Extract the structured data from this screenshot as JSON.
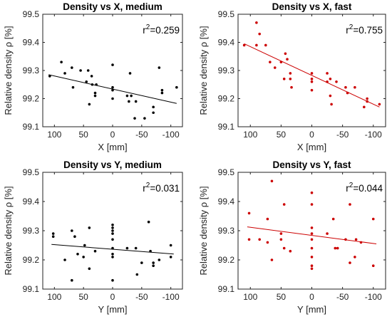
{
  "chart_data": [
    {
      "type": "scatter",
      "title": "Density vs X, medium",
      "xlabel": "X [mm]",
      "ylabel": "Relative density ρ [%]",
      "xlim": [
        120,
        -120
      ],
      "ylim": [
        99.1,
        99.5
      ],
      "xticks": [
        100,
        50,
        0,
        -50,
        -100
      ],
      "xtick_labels": [
        "100",
        "50",
        "0",
        "-50",
        "-100"
      ],
      "yticks": [
        99.1,
        99.2,
        99.3,
        99.4,
        99.5
      ],
      "ytick_labels": [
        "99.1",
        "99.2",
        "99.3",
        "99.4",
        "99.5"
      ],
      "r2_prefix": "r",
      "r2_sup": "2",
      "r2_value": "=0.259",
      "color": "#000000",
      "points": [
        {
          "x": 108,
          "y": 99.28
        },
        {
          "x": 88,
          "y": 99.33
        },
        {
          "x": 82,
          "y": 99.29
        },
        {
          "x": 70,
          "y": 99.31
        },
        {
          "x": 68,
          "y": 99.24
        },
        {
          "x": 55,
          "y": 99.3
        },
        {
          "x": 45,
          "y": 99.26
        },
        {
          "x": 40,
          "y": 99.18
        },
        {
          "x": 42,
          "y": 99.3
        },
        {
          "x": 36,
          "y": 99.28
        },
        {
          "x": 35,
          "y": 99.25
        },
        {
          "x": 30,
          "y": 99.22
        },
        {
          "x": 30,
          "y": 99.21
        },
        {
          "x": 28,
          "y": 99.25
        },
        {
          "x": 0,
          "y": 99.32
        },
        {
          "x": 0,
          "y": 99.24
        },
        {
          "x": 0,
          "y": 99.23
        },
        {
          "x": 0,
          "y": 99.2
        },
        {
          "x": -25,
          "y": 99.21
        },
        {
          "x": -28,
          "y": 99.19
        },
        {
          "x": -30,
          "y": 99.29
        },
        {
          "x": -32,
          "y": 99.21
        },
        {
          "x": -38,
          "y": 99.13
        },
        {
          "x": -40,
          "y": 99.19
        },
        {
          "x": -55,
          "y": 99.13
        },
        {
          "x": -70,
          "y": 99.15
        },
        {
          "x": -70,
          "y": 99.17
        },
        {
          "x": -80,
          "y": 99.31
        },
        {
          "x": -85,
          "y": 99.23
        },
        {
          "x": -85,
          "y": 99.22
        },
        {
          "x": -110,
          "y": 99.24
        }
      ],
      "fit": {
        "x1": 110,
        "y1": 99.285,
        "x2": -110,
        "y2": 99.183
      }
    },
    {
      "type": "scatter",
      "title": "Density vs X, fast",
      "xlabel": "X [mm]",
      "ylabel": "Relative density ρ [%]",
      "xlim": [
        120,
        -120
      ],
      "ylim": [
        99.1,
        99.5
      ],
      "xticks": [
        100,
        50,
        0,
        -50,
        -100
      ],
      "xtick_labels": [
        "100",
        "50",
        "0",
        "-50",
        "-100"
      ],
      "yticks": [
        99.1,
        99.2,
        99.3,
        99.4,
        99.5
      ],
      "ytick_labels": [
        "99.1",
        "99.2",
        "99.3",
        "99.4",
        "99.5"
      ],
      "r2_prefix": "r",
      "r2_sup": "2",
      "r2_value": "=0.755",
      "color": "#cc0000",
      "points": [
        {
          "x": 110,
          "y": 99.39
        },
        {
          "x": 90,
          "y": 99.47
        },
        {
          "x": 90,
          "y": 99.39
        },
        {
          "x": 85,
          "y": 99.43
        },
        {
          "x": 75,
          "y": 99.39
        },
        {
          "x": 68,
          "y": 99.33
        },
        {
          "x": 60,
          "y": 99.31
        },
        {
          "x": 50,
          "y": 99.33
        },
        {
          "x": 45,
          "y": 99.27
        },
        {
          "x": 43,
          "y": 99.36
        },
        {
          "x": 40,
          "y": 99.34
        },
        {
          "x": 35,
          "y": 99.29
        },
        {
          "x": 35,
          "y": 99.27
        },
        {
          "x": 33,
          "y": 99.24
        },
        {
          "x": 0,
          "y": 99.29
        },
        {
          "x": 0,
          "y": 99.27
        },
        {
          "x": 0,
          "y": 99.26
        },
        {
          "x": 0,
          "y": 99.23
        },
        {
          "x": -25,
          "y": 99.29
        },
        {
          "x": -25,
          "y": 99.26
        },
        {
          "x": -30,
          "y": 99.27
        },
        {
          "x": -30,
          "y": 99.21
        },
        {
          "x": -32,
          "y": 99.18
        },
        {
          "x": -40,
          "y": 99.26
        },
        {
          "x": -55,
          "y": 99.24
        },
        {
          "x": -58,
          "y": 99.22
        },
        {
          "x": -70,
          "y": 99.24
        },
        {
          "x": -85,
          "y": 99.17
        },
        {
          "x": -90,
          "y": 99.2
        },
        {
          "x": -90,
          "y": 99.19
        },
        {
          "x": -110,
          "y": 99.18
        }
      ],
      "fit": {
        "x1": 110,
        "y1": 99.395,
        "x2": -110,
        "y2": 99.17
      }
    },
    {
      "type": "scatter",
      "title": "Density vs Y, medium",
      "xlabel": "Y [mm]",
      "ylabel": "Relative density ρ [%]",
      "xlim": [
        120,
        -120
      ],
      "ylim": [
        99.1,
        99.5
      ],
      "xticks": [
        100,
        50,
        0,
        -50,
        -100
      ],
      "xtick_labels": [
        "100",
        "50",
        "0",
        "-50",
        "-100"
      ],
      "yticks": [
        99.1,
        99.2,
        99.3,
        99.4,
        99.5
      ],
      "ytick_labels": [
        "99.1",
        "99.2",
        "99.3",
        "99.4",
        "99.5"
      ],
      "r2_prefix": "r",
      "r2_sup": "2",
      "r2_value": "=0.031",
      "color": "#000000",
      "points": [
        {
          "x": 102,
          "y": 99.29
        },
        {
          "x": 102,
          "y": 99.28
        },
        {
          "x": 82,
          "y": 99.2
        },
        {
          "x": 70,
          "y": 99.3
        },
        {
          "x": 70,
          "y": 99.13
        },
        {
          "x": 65,
          "y": 99.28
        },
        {
          "x": 60,
          "y": 99.22
        },
        {
          "x": 50,
          "y": 99.21
        },
        {
          "x": 48,
          "y": 99.25
        },
        {
          "x": 40,
          "y": 99.31
        },
        {
          "x": 40,
          "y": 99.17
        },
        {
          "x": 30,
          "y": 99.23
        },
        {
          "x": 0,
          "y": 99.32
        },
        {
          "x": 0,
          "y": 99.31
        },
        {
          "x": 0,
          "y": 99.3
        },
        {
          "x": 0,
          "y": 99.29
        },
        {
          "x": 0,
          "y": 99.27
        },
        {
          "x": 0,
          "y": 99.24
        },
        {
          "x": 0,
          "y": 99.22
        },
        {
          "x": 0,
          "y": 99.21
        },
        {
          "x": 0,
          "y": 99.13
        },
        {
          "x": -25,
          "y": 99.24
        },
        {
          "x": -40,
          "y": 99.24
        },
        {
          "x": -42,
          "y": 99.15
        },
        {
          "x": -50,
          "y": 99.19
        },
        {
          "x": -62,
          "y": 99.33
        },
        {
          "x": -65,
          "y": 99.23
        },
        {
          "x": -70,
          "y": 99.18
        },
        {
          "x": -70,
          "y": 99.19
        },
        {
          "x": -80,
          "y": 99.2
        },
        {
          "x": -100,
          "y": 99.25
        },
        {
          "x": -100,
          "y": 99.21
        }
      ],
      "fit": {
        "x1": 105,
        "y1": 99.253,
        "x2": -105,
        "y2": 99.22
      }
    },
    {
      "type": "scatter",
      "title": "Density vs Y, fast",
      "xlabel": "Y [mm]",
      "ylabel": "Relative density ρ [%]",
      "xlim": [
        120,
        -120
      ],
      "ylim": [
        99.1,
        99.5
      ],
      "xticks": [
        100,
        50,
        0,
        -50,
        -100
      ],
      "xtick_labels": [
        "100",
        "50",
        "0",
        "-50",
        "-100"
      ],
      "yticks": [
        99.1,
        99.2,
        99.3,
        99.4,
        99.5
      ],
      "ytick_labels": [
        "99.1",
        "99.2",
        "99.3",
        "99.4",
        "99.5"
      ],
      "r2_prefix": "r",
      "r2_sup": "2",
      "r2_value": "=0.044",
      "color": "#cc0000",
      "points": [
        {
          "x": 102,
          "y": 99.36
        },
        {
          "x": 102,
          "y": 99.27
        },
        {
          "x": 85,
          "y": 99.27
        },
        {
          "x": 72,
          "y": 99.34
        },
        {
          "x": 72,
          "y": 99.26
        },
        {
          "x": 65,
          "y": 99.47
        },
        {
          "x": 65,
          "y": 99.2
        },
        {
          "x": 50,
          "y": 99.29
        },
        {
          "x": 50,
          "y": 99.27
        },
        {
          "x": 45,
          "y": 99.39
        },
        {
          "x": 45,
          "y": 99.24
        },
        {
          "x": 35,
          "y": 99.23
        },
        {
          "x": 0,
          "y": 99.43
        },
        {
          "x": 0,
          "y": 99.39
        },
        {
          "x": 0,
          "y": 99.31
        },
        {
          "x": 0,
          "y": 99.29
        },
        {
          "x": 0,
          "y": 99.27
        },
        {
          "x": 0,
          "y": 99.24
        },
        {
          "x": 0,
          "y": 99.21
        },
        {
          "x": 0,
          "y": 99.18
        },
        {
          "x": 0,
          "y": 99.17
        },
        {
          "x": -25,
          "y": 99.29
        },
        {
          "x": -35,
          "y": 99.34
        },
        {
          "x": -38,
          "y": 99.24
        },
        {
          "x": -42,
          "y": 99.24
        },
        {
          "x": -55,
          "y": 99.27
        },
        {
          "x": -62,
          "y": 99.39
        },
        {
          "x": -62,
          "y": 99.19
        },
        {
          "x": -70,
          "y": 99.21
        },
        {
          "x": -72,
          "y": 99.27
        },
        {
          "x": -80,
          "y": 99.26
        },
        {
          "x": -100,
          "y": 99.34
        },
        {
          "x": -100,
          "y": 99.18
        }
      ],
      "fit": {
        "x1": 105,
        "y1": 99.313,
        "x2": -105,
        "y2": 99.255
      }
    }
  ]
}
